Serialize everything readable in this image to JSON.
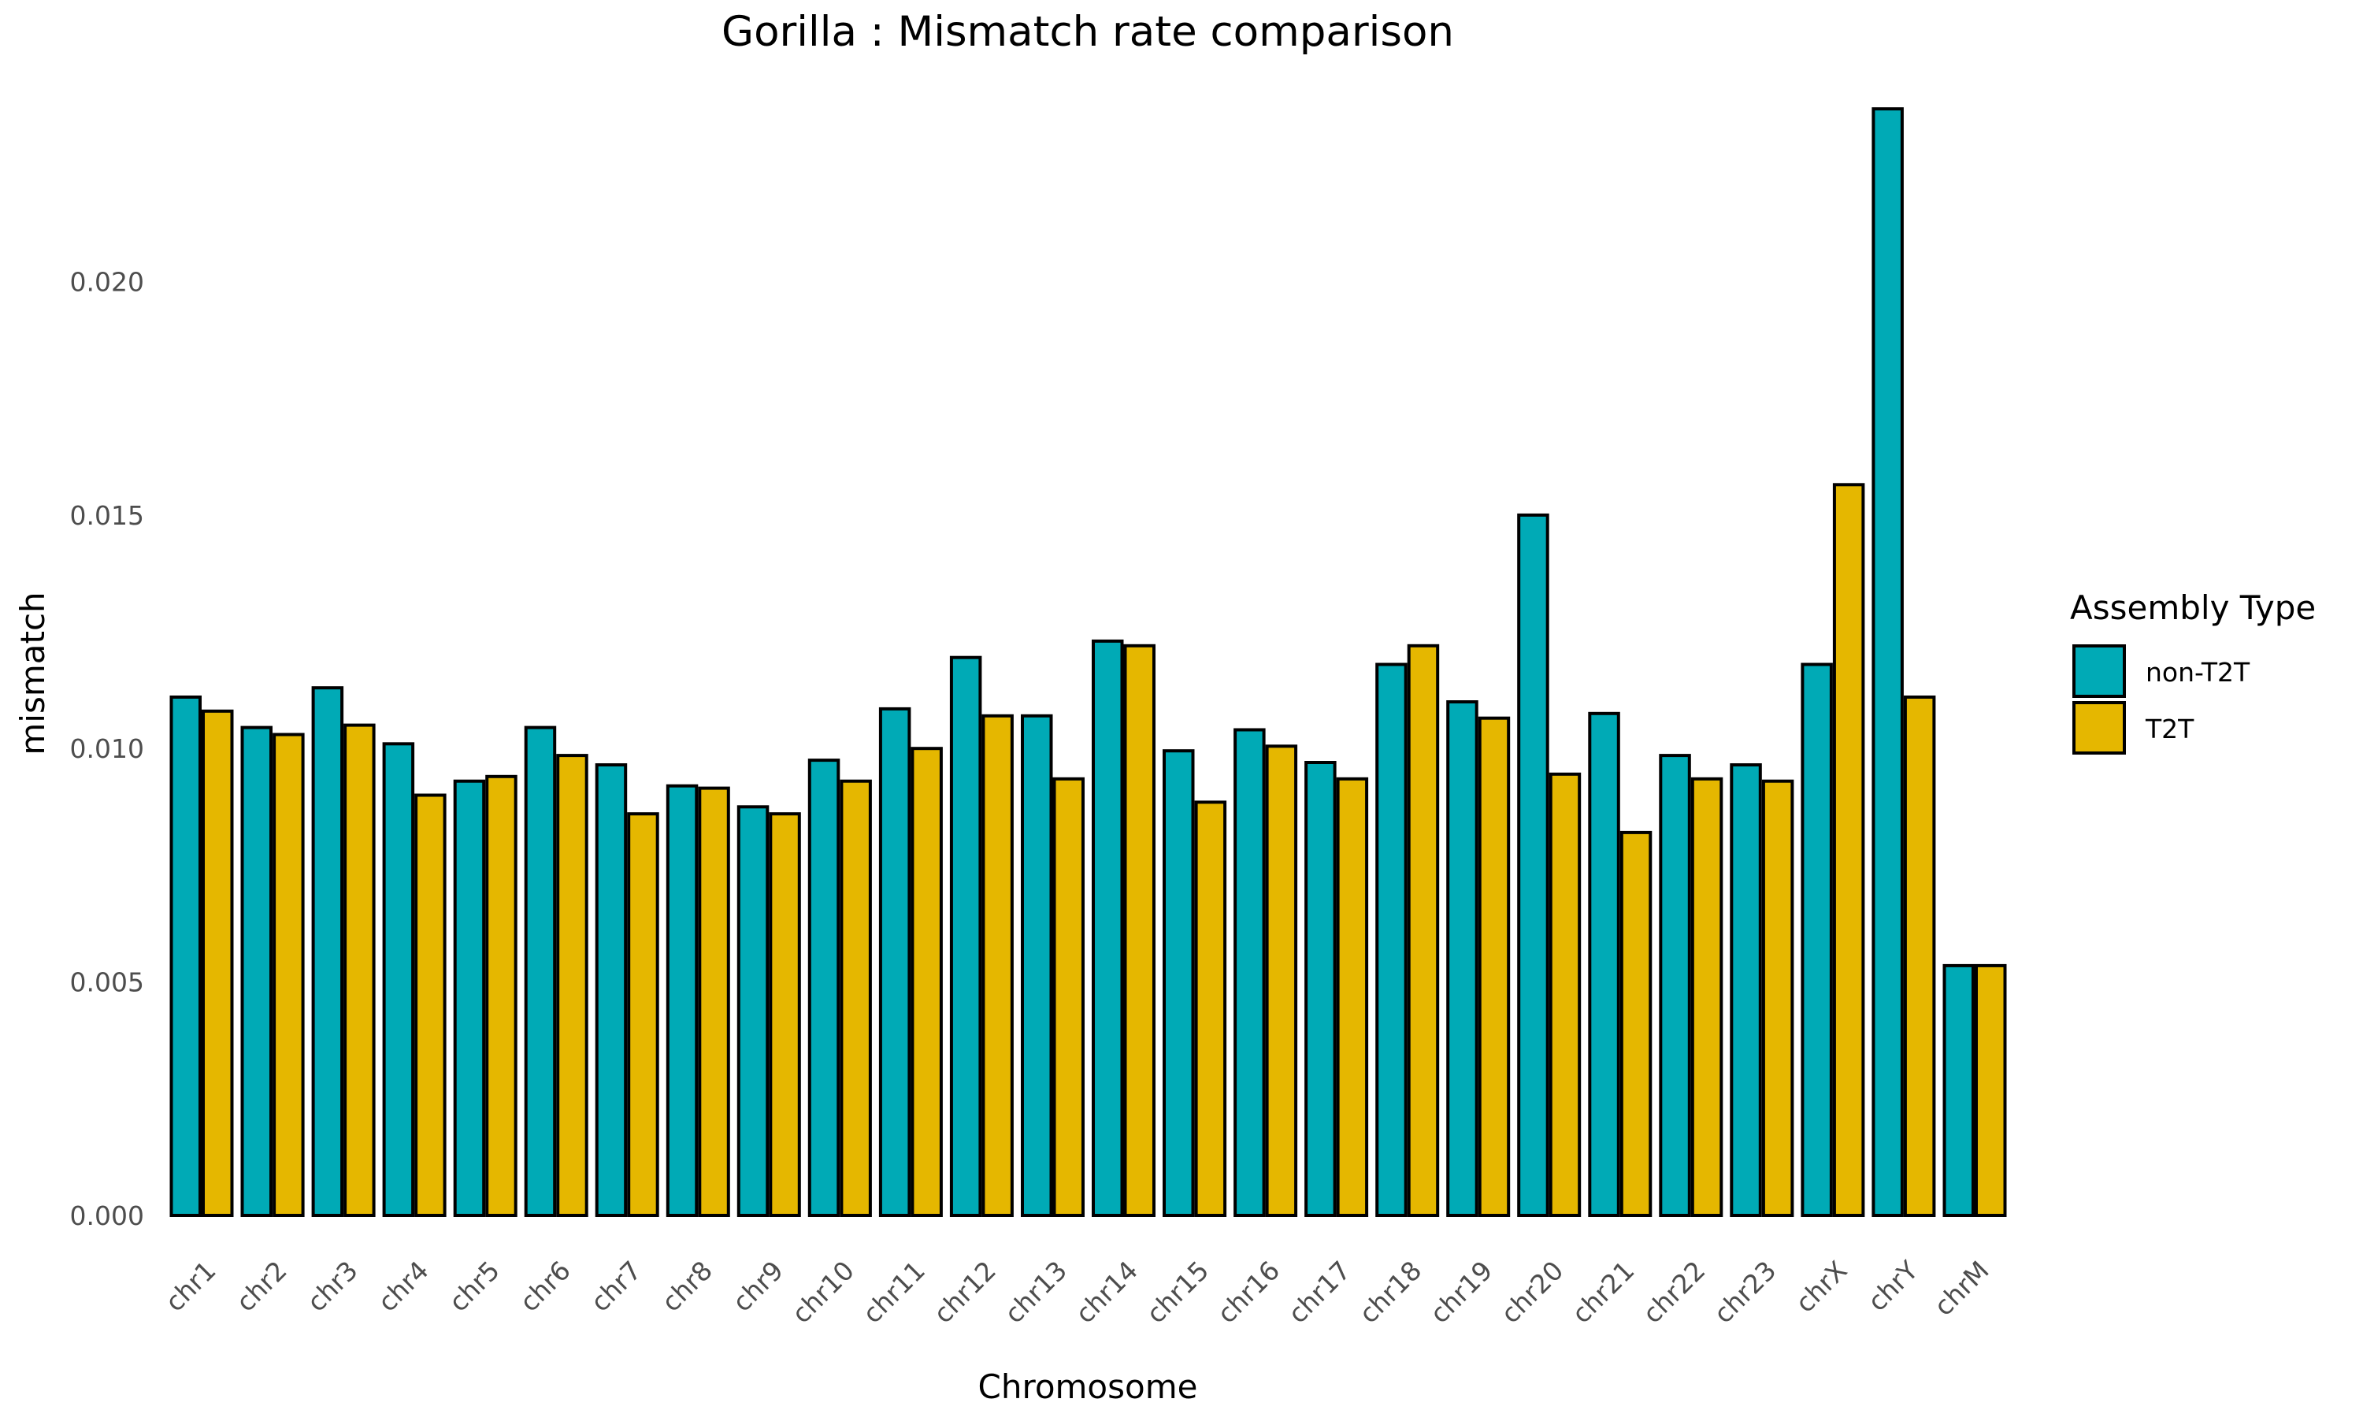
{
  "chart_data": {
    "type": "bar",
    "title": "Gorilla : Mismatch rate comparison",
    "xlabel": "Chromosome",
    "ylabel": "mismatch",
    "categories": [
      "chr1",
      "chr2",
      "chr3",
      "chr4",
      "chr5",
      "chr6",
      "chr7",
      "chr8",
      "chr9",
      "chr10",
      "chr11",
      "chr12",
      "chr13",
      "chr14",
      "chr15",
      "chr16",
      "chr17",
      "chr18",
      "chr19",
      "chr20",
      "chr21",
      "chr22",
      "chr23",
      "chrX",
      "chrY",
      "chrM"
    ],
    "series": [
      {
        "name": "non-T2T",
        "color": "#00AAB6",
        "values": [
          0.0111,
          0.01045,
          0.0113,
          0.0101,
          0.0093,
          0.01045,
          0.00965,
          0.0092,
          0.00875,
          0.00975,
          0.01085,
          0.01195,
          0.0107,
          0.0123,
          0.00995,
          0.0104,
          0.0097,
          0.0118,
          0.011,
          0.015,
          0.01075,
          0.00985,
          0.00965,
          0.0118,
          0.0237,
          0.00535
        ]
      },
      {
        "name": "T2T",
        "color": "#E5B700",
        "values": [
          0.0108,
          0.0103,
          0.0105,
          0.009,
          0.0094,
          0.00985,
          0.0086,
          0.00915,
          0.0086,
          0.0093,
          0.01,
          0.0107,
          0.00935,
          0.0122,
          0.00885,
          0.01005,
          0.00935,
          0.0122,
          0.01065,
          0.00945,
          0.0082,
          0.00935,
          0.0093,
          0.01565,
          0.0111,
          0.00535
        ]
      }
    ],
    "yticks": [
      "0.000",
      "0.005",
      "0.010",
      "0.015",
      "0.020"
    ],
    "ytick_values": [
      0,
      0.005,
      0.01,
      0.015,
      0.02
    ],
    "ylim": [
      0,
      0.02485
    ],
    "grid": false,
    "legend": {
      "title": "Assembly Type",
      "position": "right",
      "entries": [
        "non-T2T",
        "T2T"
      ]
    },
    "bar_edge_color": "#000000"
  }
}
